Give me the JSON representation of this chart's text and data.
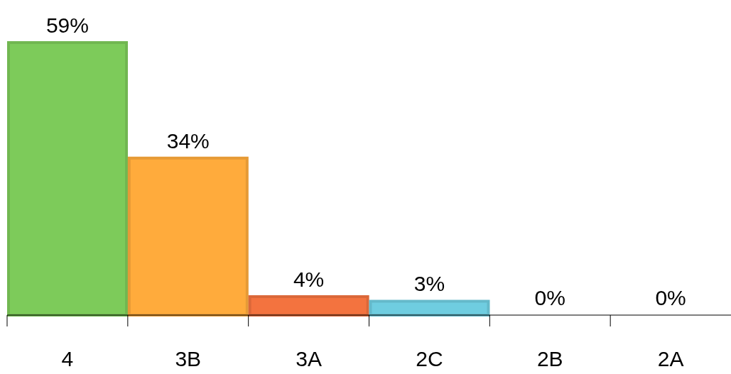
{
  "chart_data": {
    "type": "bar",
    "categories": [
      "4",
      "3B",
      "3A",
      "2C",
      "2B",
      "2A"
    ],
    "values": [
      59,
      34,
      4,
      3,
      0,
      0
    ],
    "colors": [
      "#7dcb5a",
      "#ffab3c",
      "#f3733f",
      "#6fcde0",
      "#cccccc",
      "#cccccc"
    ],
    "data_labels": true,
    "value_labels": [
      "59%",
      "34%",
      "4%",
      "3%",
      "0%",
      "0%"
    ]
  }
}
